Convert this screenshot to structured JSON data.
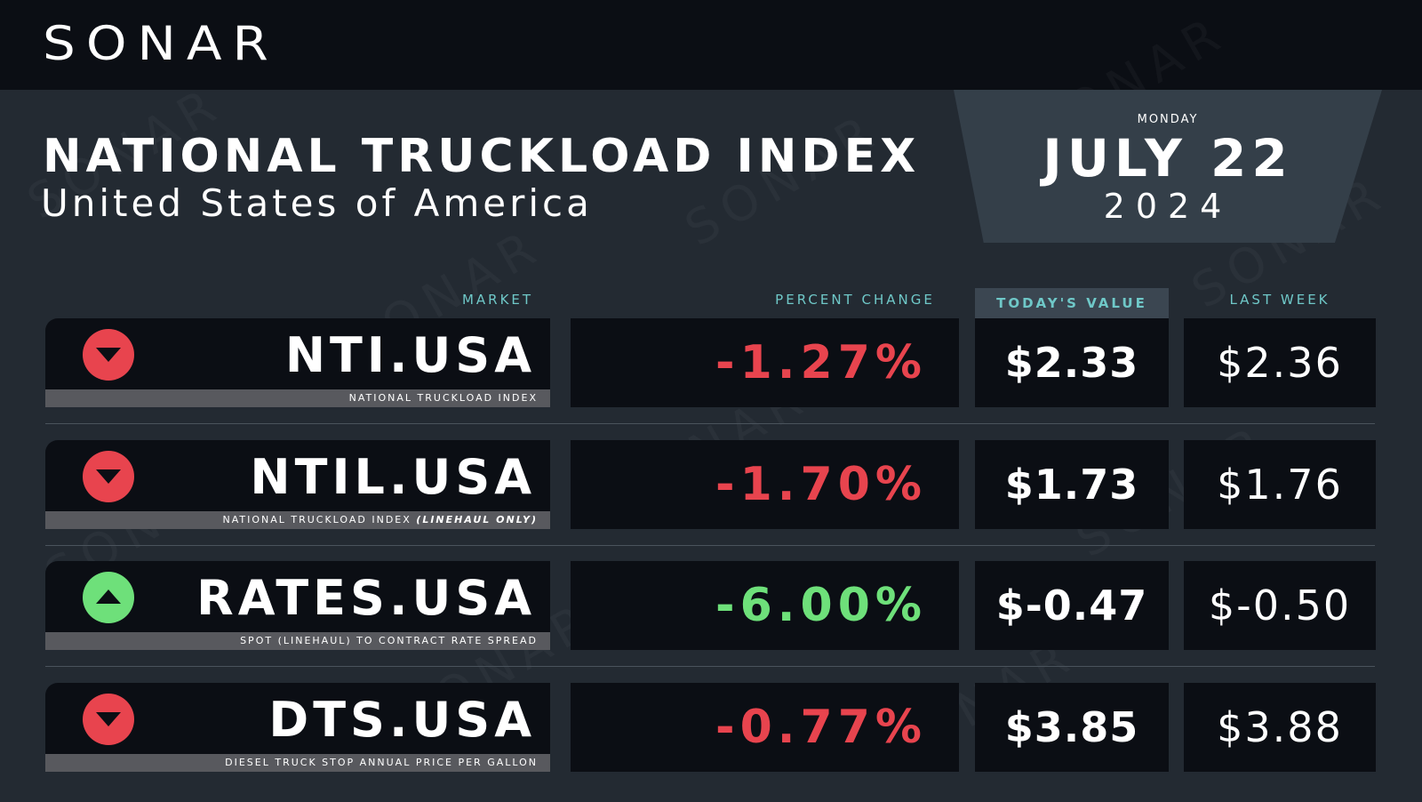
{
  "brand": {
    "logo": "SONAR"
  },
  "header": {
    "title": "NATIONAL TRUCKLOAD INDEX",
    "subtitle": "United States of America"
  },
  "date": {
    "weekday": "MONDAY",
    "month_day": "JULY 22",
    "year": "2024"
  },
  "columns": {
    "market": "MARKET",
    "percent_change": "PERCENT CHANGE",
    "todays_value": "TODAY'S VALUE",
    "last_week": "LAST WEEK"
  },
  "rows": [
    {
      "code": "NTI.USA",
      "description": "NATIONAL TRUCKLOAD INDEX",
      "description_suffix": "",
      "direction": "down",
      "percent_change": "-1.27%",
      "todays_value": "$2.33",
      "last_week": "$2.36"
    },
    {
      "code": "NTIL.USA",
      "description": "NATIONAL TRUCKLOAD INDEX ",
      "description_suffix": "(LINEHAUL ONLY)",
      "direction": "down",
      "percent_change": "-1.70%",
      "todays_value": "$1.73",
      "last_week": "$1.76"
    },
    {
      "code": "RATES.USA",
      "description": "SPOT (LINEHAUL) TO CONTRACT RATE SPREAD",
      "description_suffix": "",
      "direction": "up",
      "percent_change": "-6.00%",
      "todays_value": "$-0.47",
      "last_week": "$-0.50"
    },
    {
      "code": "DTS.USA",
      "description": "DIESEL TRUCK STOP ANNUAL PRICE PER GALLON",
      "description_suffix": "",
      "direction": "down",
      "percent_change": "-0.77%",
      "todays_value": "$3.85",
      "last_week": "$3.88"
    }
  ],
  "colors": {
    "background": "#232a32",
    "topbar": "#0b0e14",
    "cell": "#0b0e14",
    "negative": "#e8444e",
    "positive": "#6ee07a",
    "column_header": "#6fc8c8"
  }
}
